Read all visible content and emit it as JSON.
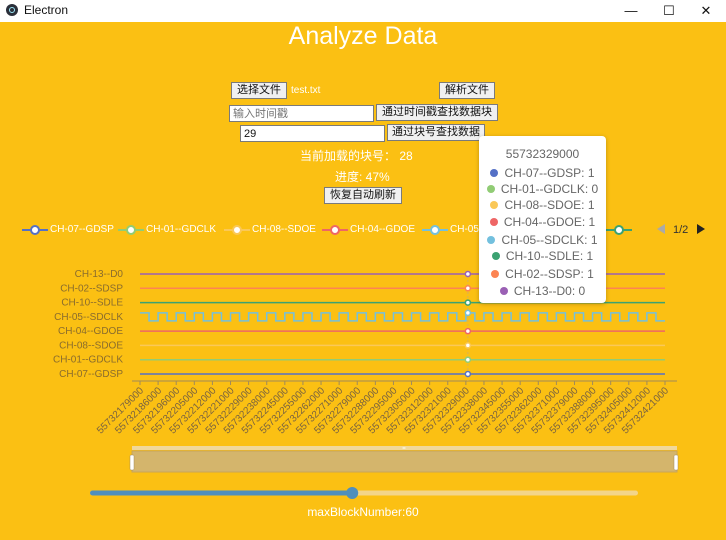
{
  "window": {
    "title": "Electron",
    "min_glyph": "—",
    "max_glyph": "☐",
    "close_glyph": "✕"
  },
  "app": {
    "title": "Analyze Data",
    "select_file_button": "选择文件",
    "file_name": "test.txt",
    "parse_button": "解析文件",
    "time_input_placeholder": "输入时间戳",
    "find_by_time_button": "通过时间戳查找数据块",
    "block_input_value": "29",
    "find_by_block_button": "通过块号查找数据",
    "current_block_text": "当前加载的块号：  28",
    "progress_text": "进度: 47%",
    "resume_button": "恢复自动刷新",
    "max_block_text": "maxBlockNumber:60"
  },
  "legend": {
    "items": [
      {
        "name": "CH-07--GDSP",
        "color": "#5470c6"
      },
      {
        "name": "CH-01--GDCLK",
        "color": "#91cc75"
      },
      {
        "name": "CH-08--SDOE",
        "color": "#fac858"
      },
      {
        "name": "CH-04--GDOE",
        "color": "#ee6666"
      },
      {
        "name": "CH-05--SDCLK",
        "color": "#73c0de"
      },
      {
        "name": "CH-10--SDLE",
        "color": "#3ba272"
      }
    ],
    "page_indicator": "1/2",
    "prev_icon": "triangle-left-icon",
    "next_icon": "triangle-right-icon"
  },
  "tooltip": {
    "title": "55732329000",
    "rows": [
      {
        "text": "CH-07--GDSP: 1",
        "color": "#5470c6"
      },
      {
        "text": "CH-01--GDCLK: 0",
        "color": "#91cc75"
      },
      {
        "text": "CH-08--SDOE: 1",
        "color": "#fac858"
      },
      {
        "text": "CH-04--GDOE: 1",
        "color": "#ee6666"
      },
      {
        "text": "CH-05--SDCLK: 1",
        "color": "#73c0de"
      },
      {
        "text": "CH-10--SDLE: 1",
        "color": "#3ba272"
      },
      {
        "text": "CH-02--SDSP: 1",
        "color": "#fc8452"
      },
      {
        "text": "CH-13--D0: 0",
        "color": "#9a60b4"
      }
    ]
  },
  "chart_data": {
    "type": "line",
    "categories_y": [
      "CH-07--GDSP",
      "CH-01--GDCLK",
      "CH-08--SDOE",
      "CH-04--GDOE",
      "CH-05--SDCLK",
      "CH-10--SDLE",
      "CH-02--SDSP",
      "CH-13--D0"
    ],
    "x_tick_labels": [
      "55732179000",
      "55732186000",
      "55732196000",
      "55732205000",
      "55732212000",
      "55732221000",
      "55732229000",
      "55732238000",
      "55732245000",
      "55732255000",
      "55732262000",
      "55732271000",
      "55732279000",
      "55732288000",
      "55732295000",
      "55732305000",
      "55732312000",
      "55732321000",
      "55732329000",
      "55732338000",
      "55732345000",
      "55732355000",
      "55732362000",
      "55732371000",
      "55732379000",
      "55732388000",
      "55732395000",
      "55732405000",
      "55732412000",
      "55732421000"
    ],
    "series": [
      {
        "name": "CH-07--GDSP",
        "color": "#5470c6",
        "pattern": "constant"
      },
      {
        "name": "CH-01--GDCLK",
        "color": "#91cc75",
        "pattern": "constant"
      },
      {
        "name": "CH-08--SDOE",
        "color": "#fac858",
        "pattern": "constant"
      },
      {
        "name": "CH-04--GDOE",
        "color": "#ee6666",
        "pattern": "constant"
      },
      {
        "name": "CH-05--SDCLK",
        "color": "#73c0de",
        "pattern": "clock"
      },
      {
        "name": "CH-10--SDLE",
        "color": "#3ba272",
        "pattern": "constant"
      },
      {
        "name": "CH-02--SDSP",
        "color": "#fc8452",
        "pattern": "constant"
      },
      {
        "name": "CH-13--D0",
        "color": "#9a60b4",
        "pattern": "constant"
      }
    ],
    "highlight_x": "55732329000",
    "datazoom": {
      "start": 0,
      "end": 1
    }
  },
  "slider": {
    "value": 29,
    "max": 60
  }
}
